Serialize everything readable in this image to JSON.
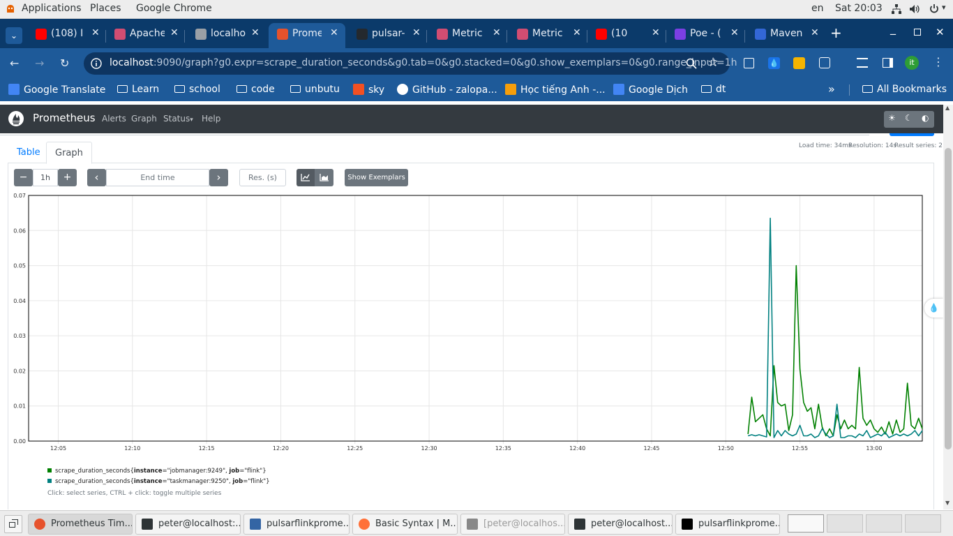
{
  "topbar": {
    "applications": "Applications",
    "places": "Places",
    "app_name": "Google Chrome",
    "lang": "en",
    "clock": "Sat 20:03"
  },
  "tabs": [
    {
      "label": "(108) I",
      "color": "#ff0000"
    },
    {
      "label": "Apache",
      "color": "#d14d72"
    },
    {
      "label": "localho",
      "color": "#9aa0a6"
    },
    {
      "label": "Prome",
      "color": "#e6522c"
    },
    {
      "label": "pulsar-",
      "color": "#24292e"
    },
    {
      "label": "Metric",
      "color": "#d14d72"
    },
    {
      "label": "Metric",
      "color": "#d14d72"
    },
    {
      "label": "(10",
      "color": "#ff0000"
    },
    {
      "label": "Poe - (",
      "color": "#7b3fe4"
    },
    {
      "label": "Maven",
      "color": "#3367d6"
    }
  ],
  "address": {
    "host": "localhost",
    "path": ":9090/graph?g0.expr=scrape_duration_seconds&g0.tab=0&g0.stacked=0&g0.show_exemplars=0&g0.range_input=1h",
    "profile_initial": "it"
  },
  "bookmarks": [
    {
      "label": "Google Translate"
    },
    {
      "label": "Learn"
    },
    {
      "label": "school"
    },
    {
      "label": "code"
    },
    {
      "label": "unbutu"
    },
    {
      "label": "sky"
    },
    {
      "label": "GitHub - zalopa..."
    },
    {
      "label": "Học tiếng Anh -..."
    },
    {
      "label": "Google Dịch"
    },
    {
      "label": "dt"
    }
  ],
  "bookmarks_overflow": "»",
  "all_bookmarks": "All Bookmarks",
  "prometheus": {
    "brand": "Prometheus",
    "nav": [
      "Alerts",
      "Graph",
      "Status",
      "Help"
    ],
    "status_caret": "▾"
  },
  "panel": {
    "tab_table": "Table",
    "tab_graph": "Graph",
    "load_time": "Load time: 34ms",
    "resolution": "Resolution: 14s",
    "result_series": "Result series: 2",
    "range": "1h",
    "end_time_placeholder": "End time",
    "res_placeholder": "Res. (s)",
    "show_exemplars": "Show Exemplars",
    "minus": "−",
    "plus": "+",
    "prev": "‹",
    "next": "›",
    "legend_hint": "Click: select series, CTRL + click: toggle multiple series"
  },
  "chart_data": {
    "type": "line",
    "y_ticks": [
      "0.00",
      "0.01",
      "0.02",
      "0.03",
      "0.04",
      "0.05",
      "0.06",
      "0.07"
    ],
    "ylim": [
      0,
      0.07
    ],
    "x_ticks": [
      "12:05",
      "12:10",
      "12:15",
      "12:20",
      "12:25",
      "12:30",
      "12:35",
      "12:40",
      "12:45",
      "12:50",
      "12:55",
      "13:00"
    ],
    "xlim_minutes": [
      63,
      123.25
    ],
    "grid": true,
    "series": [
      {
        "color": "#008000",
        "legend_prefix": "scrape_duration_seconds{",
        "labels": [
          {
            "key": "instance",
            "value": "\"jobmanager:9249\""
          },
          {
            "key": "job",
            "value": "\"flink\""
          }
        ],
        "points": [
          [
            111.5,
            0.002
          ],
          [
            111.75,
            0.0125
          ],
          [
            112.0,
            0.0055
          ],
          [
            112.25,
            0.0065
          ],
          [
            112.5,
            0.0075
          ],
          [
            112.75,
            0.0035
          ],
          [
            113.0,
            0.0015
          ],
          [
            113.25,
            0.0215
          ],
          [
            113.5,
            0.011
          ],
          [
            113.75,
            0.01
          ],
          [
            114.0,
            0.0105
          ],
          [
            114.25,
            0.003
          ],
          [
            114.5,
            0.0075
          ],
          [
            114.75,
            0.05
          ],
          [
            115.0,
            0.0205
          ],
          [
            115.25,
            0.011
          ],
          [
            115.5,
            0.0085
          ],
          [
            115.75,
            0.0095
          ],
          [
            116.0,
            0.0035
          ],
          [
            116.25,
            0.0105
          ],
          [
            116.5,
            0.004
          ],
          [
            116.75,
            0.0015
          ],
          [
            117.0,
            0.0035
          ],
          [
            117.25,
            0.0015
          ],
          [
            117.5,
            0.0075
          ],
          [
            117.75,
            0.0035
          ],
          [
            118.0,
            0.006
          ],
          [
            118.25,
            0.0035
          ],
          [
            118.5,
            0.0045
          ],
          [
            118.75,
            0.0035
          ],
          [
            119.0,
            0.021
          ],
          [
            119.25,
            0.0065
          ],
          [
            119.5,
            0.0045
          ],
          [
            119.75,
            0.006
          ],
          [
            120.0,
            0.0035
          ],
          [
            120.25,
            0.0025
          ],
          [
            120.5,
            0.004
          ],
          [
            120.75,
            0.002
          ],
          [
            121.0,
            0.0055
          ],
          [
            121.25,
            0.002
          ],
          [
            121.5,
            0.006
          ],
          [
            121.75,
            0.0025
          ],
          [
            122.0,
            0.0035
          ],
          [
            122.25,
            0.0165
          ],
          [
            122.5,
            0.0045
          ],
          [
            122.75,
            0.0035
          ],
          [
            123.0,
            0.0065
          ],
          [
            123.25,
            0.0035
          ]
        ]
      },
      {
        "color": "#008080",
        "legend_prefix": "scrape_duration_seconds{",
        "labels": [
          {
            "key": "instance",
            "value": "\"taskmanager:9250\""
          },
          {
            "key": "job",
            "value": "\"flink\""
          }
        ],
        "points": [
          [
            111.5,
            0.0015
          ],
          [
            111.75,
            0.0018
          ],
          [
            112.0,
            0.0015
          ],
          [
            112.25,
            0.0018
          ],
          [
            112.5,
            0.0015
          ],
          [
            112.75,
            0.0012
          ],
          [
            113.0,
            0.0635
          ],
          [
            113.25,
            0.001
          ],
          [
            113.5,
            0.003
          ],
          [
            113.75,
            0.0015
          ],
          [
            114.0,
            0.003
          ],
          [
            114.25,
            0.002
          ],
          [
            114.5,
            0.0015
          ],
          [
            114.75,
            0.002
          ],
          [
            115.0,
            0.0045
          ],
          [
            115.25,
            0.0015
          ],
          [
            115.5,
            0.0015
          ],
          [
            115.75,
            0.002
          ],
          [
            116.0,
            0.001
          ],
          [
            116.25,
            0.0015
          ],
          [
            116.5,
            0.0035
          ],
          [
            116.75,
            0.002
          ],
          [
            117.0,
            0.001
          ],
          [
            117.25,
            0.0015
          ],
          [
            117.5,
            0.0105
          ],
          [
            117.75,
            0.001
          ],
          [
            118.0,
            0.001
          ],
          [
            118.25,
            0.0015
          ],
          [
            118.5,
            0.0015
          ],
          [
            118.75,
            0.001
          ],
          [
            119.0,
            0.002
          ],
          [
            119.25,
            0.0015
          ],
          [
            119.5,
            0.003
          ],
          [
            119.75,
            0.001
          ],
          [
            120.0,
            0.0015
          ],
          [
            120.25,
            0.002
          ],
          [
            120.5,
            0.0015
          ],
          [
            120.75,
            0.0025
          ],
          [
            121.0,
            0.001
          ],
          [
            121.25,
            0.0015
          ],
          [
            121.5,
            0.002
          ],
          [
            121.75,
            0.0015
          ],
          [
            122.0,
            0.002
          ],
          [
            122.25,
            0.0015
          ],
          [
            122.5,
            0.002
          ],
          [
            122.75,
            0.003
          ],
          [
            123.0,
            0.0015
          ],
          [
            123.25,
            0.003
          ]
        ]
      }
    ]
  },
  "taskbar": [
    {
      "label": "Prometheus Tim...",
      "color": "#e6522c"
    },
    {
      "label": "peter@localhost:...",
      "color": "#2e3436"
    },
    {
      "label": "pulsarflinkprome...",
      "color": "#3465a4"
    },
    {
      "label": "Basic Syntax | M...",
      "color": "#ff7139"
    },
    {
      "label": "[peter@localhos...",
      "color": "#888888"
    },
    {
      "label": "peter@localhost...",
      "color": "#2e3436"
    },
    {
      "label": "pulsarflinkprome...",
      "color": "#000000"
    }
  ]
}
